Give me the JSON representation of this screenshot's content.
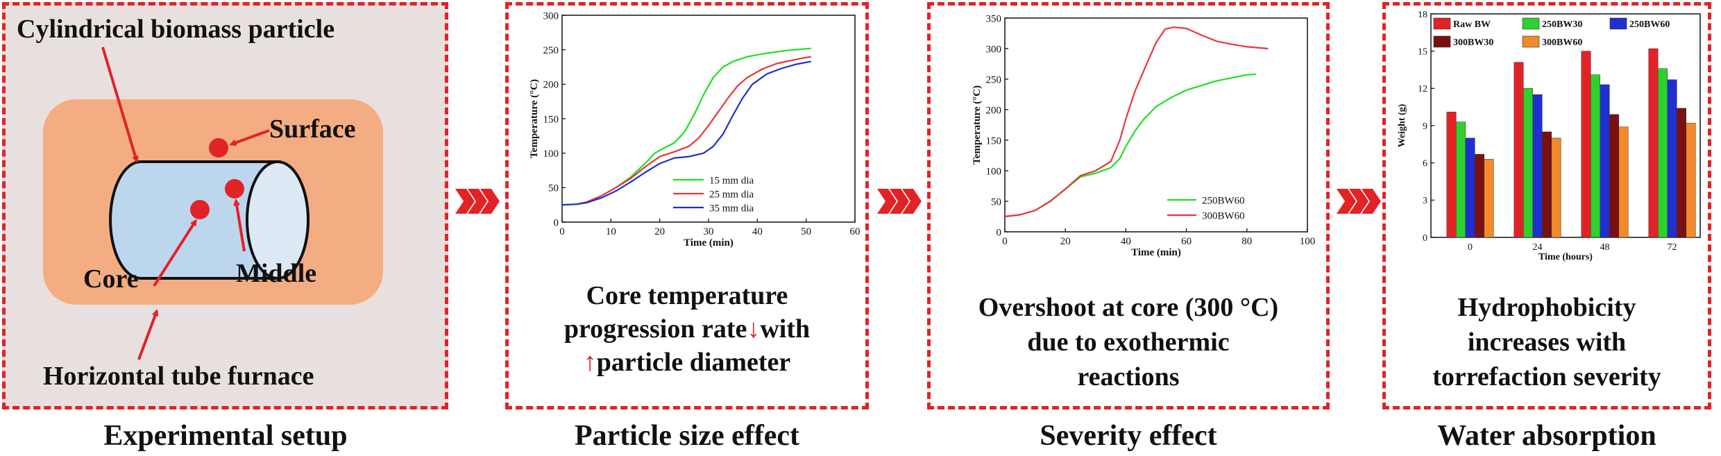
{
  "colors": {
    "accent": "#e32226",
    "setup_bg": "#e8e0de",
    "furnace": "#f4ad82",
    "cylinder": "#bcd6ee",
    "green": "#1fe01f",
    "red": "#e8363a",
    "blue": "#1f2fd0"
  },
  "panels": {
    "setup": {
      "caption": "Experimental setup",
      "title": "Cylindrical biomass particle",
      "surface": "Surface",
      "core": "Core",
      "middle": "Middle",
      "furnace": "Horizontal tube furnace"
    },
    "size": {
      "caption": "Particle size effect",
      "text_line1": "Core temperature",
      "text_line2a": "progression rate",
      "text_line2b": "with",
      "text_line3": "particle diameter",
      "arrow_down": "↓",
      "arrow_up": "↑"
    },
    "severity": {
      "caption": "Severity effect",
      "text_line1": "Overshoot at core (300 °C)",
      "text_line2": "due to exothermic",
      "text_line3": "reactions"
    },
    "water": {
      "caption": "Water absorption",
      "text_line1": "Hydrophobicity",
      "text_line2": "increases with",
      "text_line3": "torrefaction severity"
    }
  },
  "chevrons": [
    "chevrons-1",
    "chevrons-2",
    "chevrons-3"
  ],
  "chart_data": [
    {
      "type": "line",
      "xlabel": "Time (min)",
      "ylabel": "Temperature (°C)",
      "xlim": [
        0,
        60
      ],
      "ylim": [
        0,
        300
      ],
      "xticks": [
        "0",
        "10",
        "20",
        "30",
        "40",
        "50",
        "60"
      ],
      "yticks": [
        "0",
        "50",
        "100",
        "150",
        "200",
        "250",
        "300"
      ],
      "legend_position": "lower-right",
      "series": [
        {
          "name": "15 mm dia",
          "color": "#1fe01f",
          "x": [
            0,
            3,
            5,
            8,
            11,
            14,
            17,
            19,
            21,
            23,
            25,
            27,
            29,
            31,
            33,
            35,
            38,
            42,
            46,
            51
          ],
          "y": [
            25,
            26,
            29,
            38,
            50,
            65,
            85,
            100,
            108,
            115,
            130,
            155,
            185,
            210,
            225,
            233,
            240,
            245,
            249,
            252
          ]
        },
        {
          "name": "25 mm dia",
          "color": "#e8363a",
          "x": [
            0,
            3,
            5,
            8,
            11,
            14,
            17,
            20,
            23,
            26,
            28,
            30,
            32,
            34,
            36,
            38,
            41,
            44,
            48,
            51
          ],
          "y": [
            25,
            26,
            29,
            38,
            50,
            63,
            80,
            95,
            102,
            110,
            122,
            140,
            160,
            180,
            198,
            210,
            222,
            230,
            236,
            240
          ]
        },
        {
          "name": "35 mm dia",
          "color": "#1f2fd0",
          "x": [
            0,
            3,
            5,
            8,
            11,
            14,
            17,
            20,
            23,
            26,
            29,
            31,
            33,
            35,
            37,
            39,
            42,
            45,
            48,
            51
          ],
          "y": [
            25,
            26,
            28,
            35,
            45,
            58,
            72,
            85,
            93,
            95,
            100,
            110,
            128,
            155,
            180,
            200,
            215,
            223,
            229,
            233
          ]
        }
      ]
    },
    {
      "type": "line",
      "xlabel": "Time (min)",
      "ylabel": "Temperature (°C)",
      "xlim": [
        0,
        100
      ],
      "ylim": [
        0,
        350
      ],
      "xticks": [
        "0",
        "20",
        "40",
        "60",
        "80",
        "100"
      ],
      "yticks": [
        "0",
        "50",
        "100",
        "150",
        "200",
        "250",
        "300",
        "350"
      ],
      "legend_position": "lower-right",
      "series": [
        {
          "name": "250BW60",
          "color": "#1fe01f",
          "x": [
            0,
            5,
            10,
            15,
            20,
            25,
            30,
            35,
            38,
            40,
            43,
            46,
            50,
            55,
            60,
            70,
            80,
            83
          ],
          "y": [
            25,
            28,
            35,
            50,
            70,
            90,
            96,
            105,
            120,
            140,
            165,
            185,
            205,
            220,
            232,
            247,
            257,
            258
          ]
        },
        {
          "name": "300BW60",
          "color": "#e8363a",
          "x": [
            0,
            5,
            10,
            15,
            20,
            25,
            30,
            35,
            38,
            40,
            43,
            46,
            50,
            53,
            56,
            60,
            65,
            70,
            75,
            80,
            87
          ],
          "y": [
            25,
            28,
            35,
            50,
            70,
            92,
            100,
            115,
            150,
            185,
            230,
            265,
            310,
            332,
            335,
            333,
            322,
            312,
            307,
            303,
            300
          ]
        }
      ]
    },
    {
      "type": "bar",
      "xlabel": "Time (hours)",
      "ylabel": "Weight (g)",
      "ylim": [
        0,
        18
      ],
      "yticks": [
        "0",
        "3",
        "6",
        "9",
        "12",
        "15",
        "18"
      ],
      "categories": [
        "0",
        "24",
        "48",
        "72"
      ],
      "legend_position": "top",
      "series": [
        {
          "name": "Raw BW",
          "color": "#e32226",
          "values": [
            10.1,
            14.1,
            15.0,
            15.2
          ]
        },
        {
          "name": "250BW30",
          "color": "#2fd12f",
          "values": [
            9.3,
            12.0,
            13.1,
            13.6
          ]
        },
        {
          "name": "250BW60",
          "color": "#1f2fd0",
          "values": [
            8.0,
            11.5,
            12.3,
            12.7
          ]
        },
        {
          "name": "300BW30",
          "color": "#7a1010",
          "values": [
            6.7,
            8.5,
            9.9,
            10.4
          ]
        },
        {
          "name": "300BW60",
          "color": "#f08a2a",
          "values": [
            6.3,
            8.0,
            8.9,
            9.2
          ]
        }
      ]
    }
  ]
}
